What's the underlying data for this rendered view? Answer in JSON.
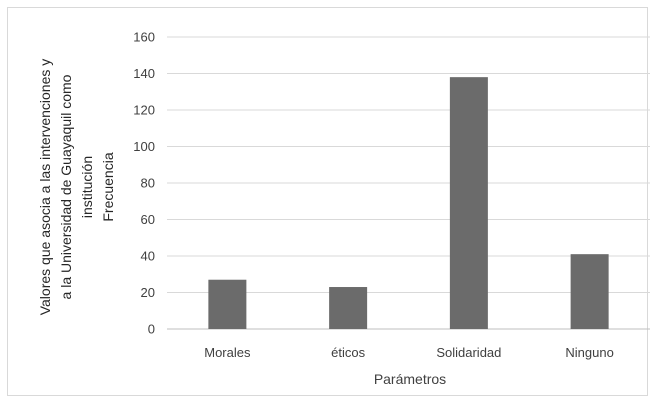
{
  "chart_data": {
    "type": "bar",
    "categories": [
      "Morales",
      "éticos",
      "Solidaridad",
      "Ninguno"
    ],
    "values": [
      27,
      23,
      138,
      41
    ],
    "xlabel": "Parámetros",
    "ylabel_lines": [
      "Valores que asocia a las intervenciones y",
      "a la Universidad de Guayaquil como",
      "institución",
      "Frecuencia"
    ],
    "ylim": [
      0,
      160
    ],
    "yticks": [
      0,
      20,
      40,
      60,
      80,
      100,
      120,
      140,
      160
    ],
    "grid": true,
    "legend": "none",
    "colors": {
      "bar": "#6b6b6b",
      "grid": "#d9d9d9",
      "text": "#404040"
    }
  }
}
